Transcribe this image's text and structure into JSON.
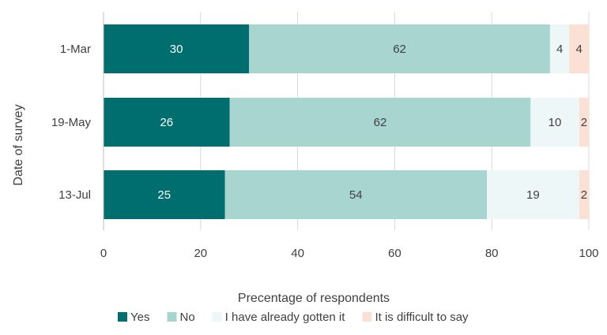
{
  "chart_data": {
    "type": "bar",
    "orientation": "horizontal",
    "stacked": true,
    "title": "",
    "xlabel": "Precentage of respondents",
    "ylabel": "Date of survey",
    "categories": [
      "1-Mar",
      "19-May",
      "13-Jul"
    ],
    "xlim": [
      0,
      100
    ],
    "xticks": [
      0,
      20,
      40,
      60,
      80,
      100
    ],
    "grid": true,
    "legend_position": "bottom",
    "series": [
      {
        "name": "Yes",
        "values": [
          30,
          26,
          25
        ],
        "color": "#006d6f",
        "label_color": "#ffffff"
      },
      {
        "name": "No",
        "values": [
          62,
          62,
          54
        ],
        "color": "#a8d5d0",
        "label_color": "#404040"
      },
      {
        "name": "I have already gotten it",
        "values": [
          4,
          10,
          19
        ],
        "color": "#eef7f8",
        "label_color": "#404040"
      },
      {
        "name": "It is difficult to say",
        "values": [
          4,
          2,
          2
        ],
        "color": "#fbe0d6",
        "label_color": "#404040"
      }
    ]
  }
}
